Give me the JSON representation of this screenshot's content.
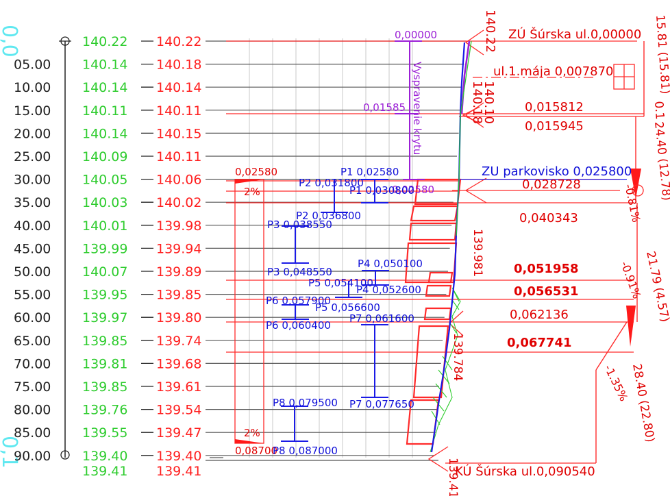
{
  "left_markers": {
    "top": "0,0",
    "bottom": "0,1"
  },
  "rows": [
    {
      "station": "",
      "green": "140.22",
      "red": "140.22"
    },
    {
      "station": "05.00",
      "green": "140.14",
      "red": "140.18"
    },
    {
      "station": "10.00",
      "green": "140.14",
      "red": "140.14"
    },
    {
      "station": "15.00",
      "green": "140.11",
      "red": "140.11"
    },
    {
      "station": "20.00",
      "green": "140.14",
      "red": "140.15"
    },
    {
      "station": "25.00",
      "green": "140.09",
      "red": "140.11"
    },
    {
      "station": "30.00",
      "green": "140.05",
      "red": "140.06"
    },
    {
      "station": "35.00",
      "green": "140.03",
      "red": "140.02"
    },
    {
      "station": "40.00",
      "green": "140.01",
      "red": "139.98"
    },
    {
      "station": "45.00",
      "green": "139.99",
      "red": "139.94"
    },
    {
      "station": "50.00",
      "green": "140.07",
      "red": "139.89"
    },
    {
      "station": "55.00",
      "green": "139.95",
      "red": "139.85"
    },
    {
      "station": "60.00",
      "green": "139.97",
      "red": "139.80"
    },
    {
      "station": "65.00",
      "green": "139.85",
      "red": "139.74"
    },
    {
      "station": "70.00",
      "green": "139.81",
      "red": "139.68"
    },
    {
      "station": "75.00",
      "green": "139.85",
      "red": "139.61"
    },
    {
      "station": "80.00",
      "green": "139.76",
      "red": "139.54"
    },
    {
      "station": "85.00",
      "green": "139.55",
      "red": "139.47"
    },
    {
      "station": "90.00",
      "green": "139.40",
      "red": "139.40"
    }
  ],
  "bottom_row": {
    "green": "139.41",
    "red": "139.41"
  },
  "box": {
    "top_value": "0,02580",
    "top_pct": "2%",
    "bottom_pct": "2%",
    "bottom_value": "0,08700"
  },
  "purple": {
    "top_value": "0,00000",
    "mid_value": "0,01585",
    "bottom_value": "0,02580",
    "vertical_label": "Vyspravenie krytu"
  },
  "blue_labels": {
    "p1_top": "P1  0,02580",
    "p1_bot": "P1  0,030800",
    "p2_top": "P2  0,031800",
    "p2_bot": "P2  0,036800",
    "p3_top": "P3  0,038550",
    "p3_bot": "P3  0,048550",
    "p4_top": "P4  0,050100",
    "p4_bot": "P4  0,052600",
    "p5_top": "P5  0,054100",
    "p5_bot": "P5  0,056600",
    "p6_top": "P6  0,057900",
    "p6_bot": "P6  0,060400",
    "p7_top": "P7  0,061600",
    "p7_bot": "P7  0,077650",
    "p8_top": "P8  0,079500",
    "p8_bot": "P8  0,087000",
    "zu_parkovisko": "ZU  parkovisko  0,025800"
  },
  "right_labels": {
    "zu_top": "ZÚ  Šúrska ul.0,00000",
    "ul_maja": "ul.1.mája  0,007870",
    "v015812": "0,015812",
    "v015945": "0,015945",
    "v028728": "0,028728",
    "v040343": "0,040343",
    "v051958": "0,051958",
    "v056531": "0,056531",
    "v062136": "0,062136",
    "v067741": "0,067741",
    "ku_bottom": "KÚ  Šúrska ul.0,090540"
  },
  "rotated": {
    "e14022": "140.22",
    "e14018": "140.18",
    "e14010": "140.10",
    "e139981": "139.981",
    "e139784": "139.784",
    "e13941": "139.41",
    "seg1": "15.81  (15.81)",
    "seg2": "0.1",
    "seg3": "24.40  (12.78)",
    "seg4": "21.79  (4.57)",
    "seg5": "28.40  (22.80)",
    "slope1": "-0.81%",
    "slope2": "-0.91%",
    "slope3": "-1.35%"
  }
}
